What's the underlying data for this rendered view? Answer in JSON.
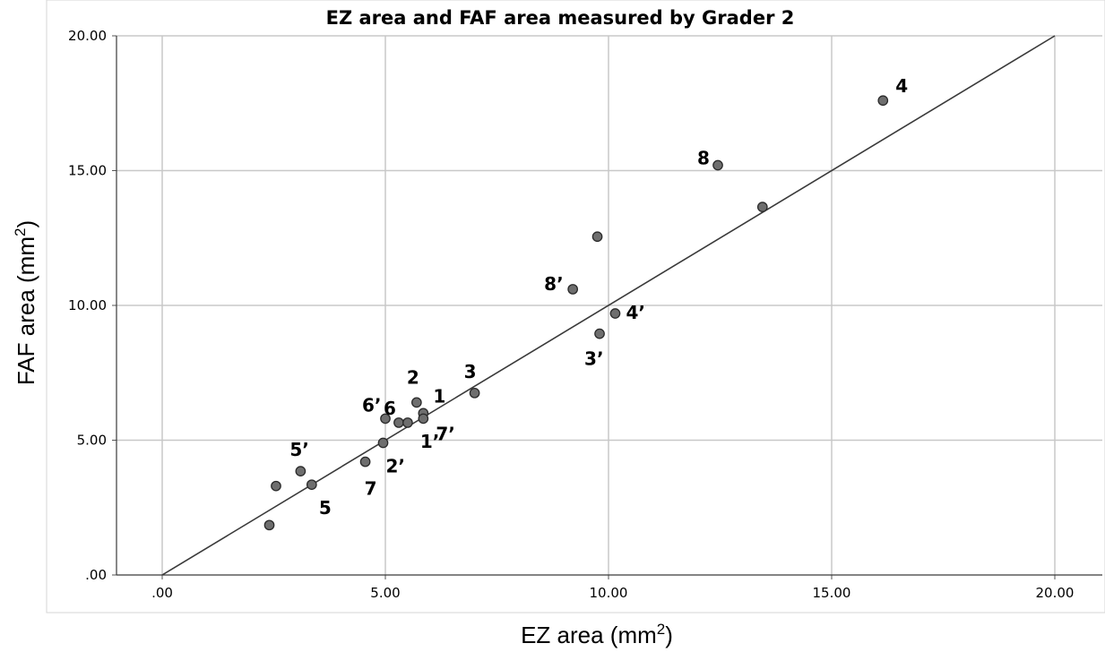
{
  "chart_data": {
    "type": "scatter",
    "title": "EZ area and FAF area measured by Grader 2",
    "xlabel": "EZ area (mm",
    "ylabel": "FAF area (mm",
    "label_superscript": "2",
    "label_suffix": ")",
    "xlim": [
      0,
      20
    ],
    "ylim": [
      0,
      20
    ],
    "x_ticks": [
      ".00",
      "5.00",
      "10.00",
      "15.00",
      "20.00"
    ],
    "y_ticks": [
      ".00",
      "5.00",
      "10.00",
      "15.00",
      "20.00"
    ],
    "grid": true,
    "reference_line": {
      "from": [
        0,
        0
      ],
      "to": [
        20,
        20
      ]
    },
    "points": [
      {
        "x": 2.4,
        "y": 1.85,
        "label": ""
      },
      {
        "x": 2.55,
        "y": 3.3,
        "label": ""
      },
      {
        "x": 3.1,
        "y": 3.85,
        "label": "5’"
      },
      {
        "x": 3.35,
        "y": 3.35,
        "label": "5"
      },
      {
        "x": 4.55,
        "y": 4.2,
        "label": "7"
      },
      {
        "x": 4.95,
        "y": 4.9,
        "label": "2’"
      },
      {
        "x": 5.0,
        "y": 5.8,
        "label": "6’"
      },
      {
        "x": 5.3,
        "y": 5.65,
        "label": "6"
      },
      {
        "x": 5.5,
        "y": 5.65,
        "label": "1’"
      },
      {
        "x": 5.7,
        "y": 6.4,
        "label": "2"
      },
      {
        "x": 5.85,
        "y": 6.0,
        "label": "1"
      },
      {
        "x": 5.85,
        "y": 5.8,
        "label": "7’"
      },
      {
        "x": 7.0,
        "y": 6.75,
        "label": "3"
      },
      {
        "x": 9.2,
        "y": 10.6,
        "label": "8’"
      },
      {
        "x": 9.75,
        "y": 12.55,
        "label": ""
      },
      {
        "x": 9.8,
        "y": 8.95,
        "label": "3’"
      },
      {
        "x": 10.15,
        "y": 9.7,
        "label": "4’"
      },
      {
        "x": 12.45,
        "y": 15.2,
        "label": "8"
      },
      {
        "x": 13.45,
        "y": 13.65,
        "label": ""
      },
      {
        "x": 16.15,
        "y": 17.6,
        "label": "4"
      }
    ],
    "colors": {
      "point_fill": "#6e6e6e",
      "point_stroke": "#2a2a2a",
      "grid": "#c8c8c8",
      "line": "#3a3a3a"
    }
  }
}
